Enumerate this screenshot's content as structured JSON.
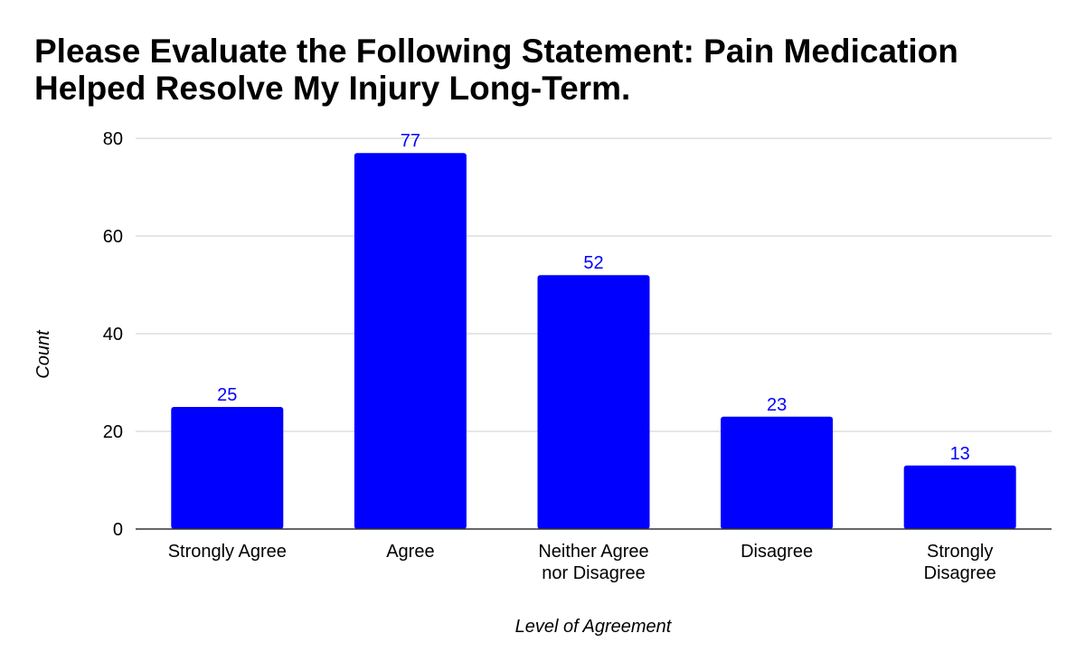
{
  "chart_data": {
    "type": "bar",
    "title": "Please Evaluate the Following Statement: Pain Medication Helped Resolve My Injury Long-Term.",
    "xlabel": "Level of Agreement",
    "ylabel": "Count",
    "categories": [
      [
        "Strongly Agree"
      ],
      [
        "Agree"
      ],
      [
        "Neither Agree",
        "nor Disagree"
      ],
      [
        "Disagree"
      ],
      [
        "Strongly",
        "Disagree"
      ]
    ],
    "values": [
      25,
      77,
      52,
      23,
      13
    ],
    "value_labels": [
      "25",
      "77",
      "52",
      "23",
      "13"
    ],
    "ylim": [
      0,
      80
    ],
    "yticks": [
      0,
      20,
      40,
      60,
      80
    ],
    "ytick_labels": [
      "0",
      "20",
      "40",
      "60",
      "80"
    ],
    "grid": true,
    "legend": "none",
    "colors": {
      "bar": "#0000ff",
      "data_label": "#0000ff",
      "gridline": "#cccccc",
      "axis": "#333333"
    }
  }
}
